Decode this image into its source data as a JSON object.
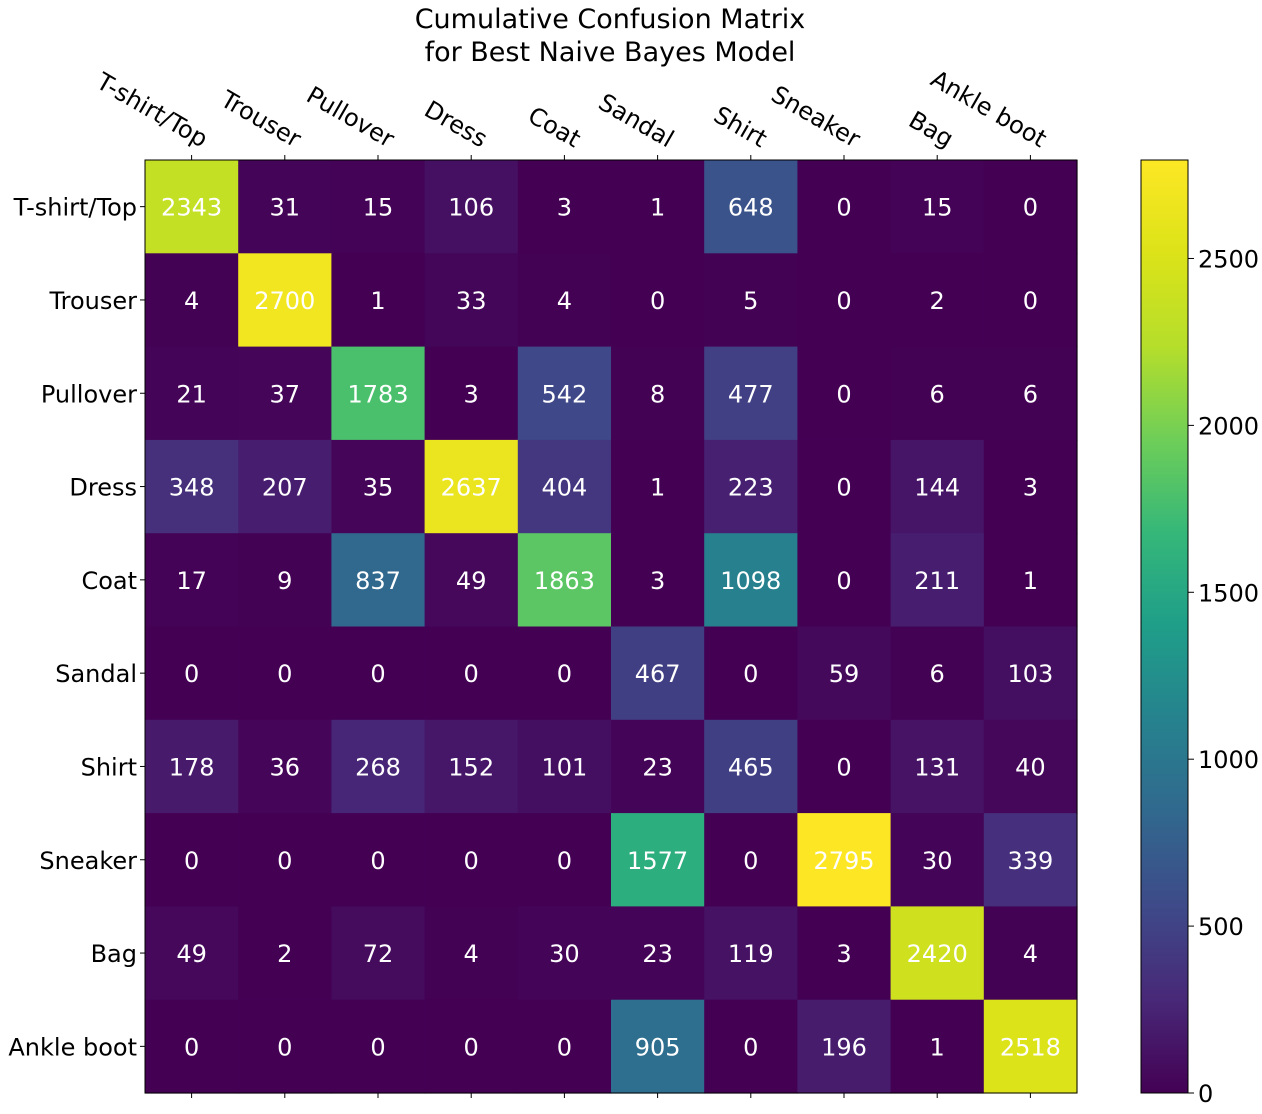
{
  "chart_data": {
    "type": "heatmap",
    "title_lines": [
      "Cumulative Confusion Matrix",
      "for Best Naive Bayes Model"
    ],
    "x_labels": [
      "T-shirt/Top",
      "Trouser",
      "Pullover",
      "Dress",
      "Coat",
      "Sandal",
      "Shirt",
      "Sneaker",
      "Bag",
      "Ankle boot"
    ],
    "y_labels": [
      "T-shirt/Top",
      "Trouser",
      "Pullover",
      "Dress",
      "Coat",
      "Sandal",
      "Shirt",
      "Sneaker",
      "Bag",
      "Ankle boot"
    ],
    "matrix": [
      [
        2343,
        31,
        15,
        106,
        3,
        1,
        648,
        0,
        15,
        0
      ],
      [
        4,
        2700,
        1,
        33,
        4,
        0,
        5,
        0,
        2,
        0
      ],
      [
        21,
        37,
        1783,
        3,
        542,
        8,
        477,
        0,
        6,
        6
      ],
      [
        348,
        207,
        35,
        2637,
        404,
        1,
        223,
        0,
        144,
        3
      ],
      [
        17,
        9,
        837,
        49,
        1863,
        3,
        1098,
        0,
        211,
        1
      ],
      [
        0,
        0,
        0,
        0,
        0,
        467,
        0,
        59,
        6,
        103
      ],
      [
        178,
        36,
        268,
        152,
        101,
        23,
        465,
        0,
        131,
        40
      ],
      [
        0,
        0,
        0,
        0,
        0,
        1577,
        0,
        2795,
        30,
        339
      ],
      [
        49,
        2,
        72,
        4,
        30,
        23,
        119,
        3,
        2420,
        4
      ],
      [
        0,
        0,
        0,
        0,
        0,
        905,
        0,
        196,
        1,
        2518
      ]
    ],
    "colormap": "viridis",
    "value_range": [
      0,
      2795
    ],
    "colorbar_ticks": [
      "0",
      "500",
      "1000",
      "1500",
      "2000",
      "2500"
    ],
    "grid": false
  }
}
